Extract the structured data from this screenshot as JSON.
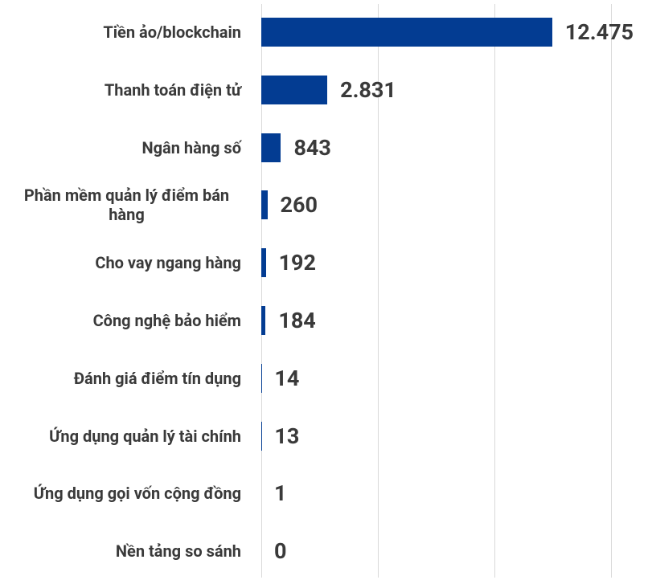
{
  "chart_data": {
    "type": "bar",
    "orientation": "horizontal",
    "categories": [
      "Tiền ảo/blockchain",
      "Thanh toán điện tử",
      "Ngân hàng số",
      "Phần mềm quản lý điểm bán hàng",
      "Cho vay ngang hàng",
      "Công nghệ bảo hiểm",
      "Đánh giá điểm tín dụng",
      "Ứng dụng quản lý tài chính",
      "Ứng dụng gọi vốn cộng đồng",
      "Nền tảng so sánh"
    ],
    "values": [
      12475,
      2831,
      843,
      260,
      192,
      184,
      14,
      13,
      1,
      0
    ],
    "value_labels": [
      "12.475",
      "2.831",
      "843",
      "260",
      "192",
      "184",
      "14",
      "13",
      "1",
      "0"
    ],
    "color": "#033c92",
    "xlim": [
      0,
      15000
    ],
    "xticks": [
      0,
      5000,
      10000,
      15000
    ],
    "grid": true
  }
}
